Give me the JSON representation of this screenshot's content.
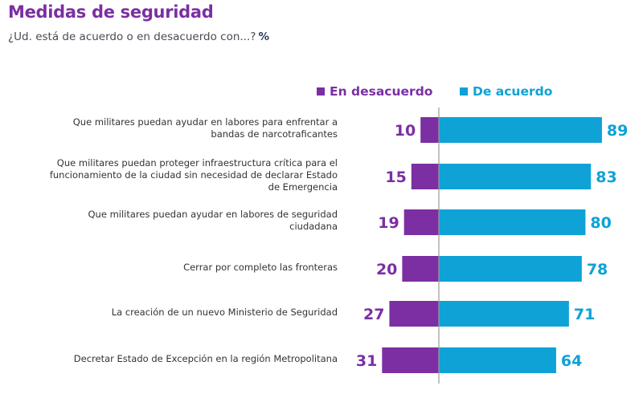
{
  "header": {
    "title": "Medidas de seguridad",
    "subtitle": "¿Ud. está de acuerdo o en desacuerdo con...?",
    "unit": "%"
  },
  "colors": {
    "disagree": "#7b2fa3",
    "agree": "#0ea2d6",
    "axis": "#9a9a9a"
  },
  "chart_data": {
    "type": "bar",
    "orientation": "horizontal-diverging",
    "title": "Medidas de seguridad",
    "subtitle": "¿Ud. está de acuerdo o en desacuerdo con...? %",
    "xlabel": "",
    "ylabel": "",
    "legend_position": "top-right",
    "legend": [
      "En desacuerdo",
      "De acuerdo"
    ],
    "categories": [
      "Que militares puedan ayudar en labores para enfrentar a bandas de narcotraficantes",
      "Que militares puedan proteger infraestructura crítica para el funcionamiento de la ciudad sin necesidad de declarar Estado de Emergencia",
      "Que militares puedan ayudar en labores de seguridad ciudadana",
      "Cerrar por completo las fronteras",
      "La creación de un nuevo Ministerio de Seguridad",
      "Decretar Estado de Excepción en la región Metropolitana"
    ],
    "category_lines": [
      [
        "Que militares puedan ayudar en labores para enfrentar a",
        "bandas de narcotraficantes"
      ],
      [
        "Que militares puedan proteger infraestructura crítica para el",
        "funcionamiento de la ciudad sin necesidad de declarar Estado",
        "de Emergencia"
      ],
      [
        "Que militares puedan ayudar en labores de seguridad",
        "ciudadana"
      ],
      [
        "Cerrar por completo las fronteras"
      ],
      [
        "La creación de un nuevo Ministerio de Seguridad"
      ],
      [
        "Decretar Estado de Excepción en la región Metropolitana"
      ]
    ],
    "series": [
      {
        "name": "En desacuerdo",
        "values": [
          10,
          15,
          19,
          20,
          27,
          31
        ]
      },
      {
        "name": "De acuerdo",
        "values": [
          89,
          83,
          80,
          78,
          71,
          64
        ]
      }
    ],
    "xlim": [
      -31,
      89
    ],
    "grid": false
  }
}
